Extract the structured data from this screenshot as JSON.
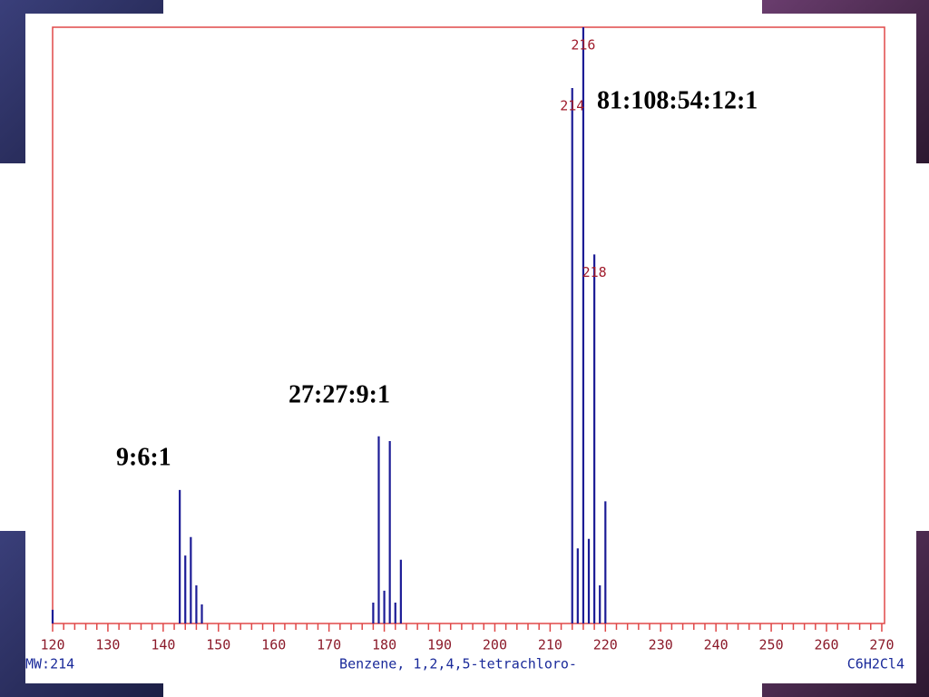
{
  "chart_data": {
    "type": "bar",
    "x": [
      120,
      143,
      144,
      145,
      146,
      147,
      178,
      179,
      180,
      181,
      182,
      183,
      214,
      215,
      216,
      217,
      218,
      219,
      220
    ],
    "values": [
      2.3,
      22.4,
      11.4,
      14.5,
      6.4,
      3.2,
      3.5,
      31.4,
      5.5,
      30.6,
      3.5,
      10.7,
      89.8,
      12.6,
      100,
      14.2,
      61.9,
      6.4,
      20.5
    ],
    "color": "#1c1c96",
    "xlim": [
      120,
      270.5
    ],
    "ylim": [
      0,
      100
    ],
    "xticks": [
      120,
      130,
      140,
      150,
      160,
      170,
      180,
      190,
      200,
      210,
      220,
      230,
      240,
      250,
      260,
      270
    ],
    "xminorticks": [
      122,
      124,
      126,
      128,
      132,
      134,
      136,
      138,
      142,
      144,
      146,
      148,
      152,
      154,
      156,
      158,
      162,
      164,
      166,
      168,
      172,
      174,
      176,
      178,
      182,
      184,
      186,
      188,
      192,
      194,
      196,
      198,
      202,
      204,
      206,
      208,
      212,
      214,
      216,
      218,
      222,
      224,
      226,
      228,
      232,
      234,
      236,
      238,
      242,
      244,
      246,
      248,
      252,
      254,
      256,
      258,
      262,
      264,
      266,
      268
    ],
    "frame_color": "#e04848",
    "peak_labels": [
      214,
      216,
      218
    ],
    "annotations": [
      "9:6:1",
      "27:27:9:1",
      "81:108:54:12:1"
    ],
    "mw_label": "MW:214",
    "compound": "Benzene, 1,2,4,5-tetrachloro-",
    "formula": "C6H2Cl4"
  }
}
